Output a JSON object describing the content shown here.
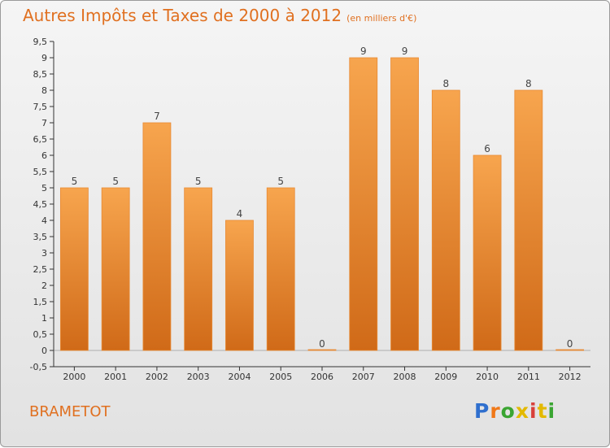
{
  "title": "Autres Impôts et Taxes de 2000 à 2012",
  "subtitle": "(en milliers d'€)",
  "commune": "BRAMETOT",
  "logo": "Proxiti",
  "colors": {
    "bar_top": "#f7a54e",
    "bar_bottom": "#d06a18",
    "title": "#e07020"
  },
  "chart_data": {
    "type": "bar",
    "categories": [
      "2000",
      "2001",
      "2002",
      "2003",
      "2004",
      "2005",
      "2006",
      "2007",
      "2008",
      "2009",
      "2010",
      "2011",
      "2012"
    ],
    "values": [
      5,
      5,
      7,
      5,
      4,
      5,
      0,
      9,
      9,
      8,
      6,
      8,
      0
    ],
    "data_labels": [
      "5",
      "5",
      "7",
      "5",
      "4",
      "5",
      "0",
      "9",
      "9",
      "8",
      "6",
      "8",
      "0"
    ],
    "title": "Autres Impôts et Taxes de 2000 à 2012",
    "ylim": [
      -0.5,
      9.5
    ],
    "yticks": [
      -0.5,
      0,
      0.5,
      1,
      1.5,
      2,
      2.5,
      3,
      3.5,
      4,
      4.5,
      5,
      5.5,
      6,
      6.5,
      7,
      7.5,
      8,
      8.5,
      9,
      9.5
    ],
    "ytick_labels": [
      "-0,5",
      "0",
      "0,5",
      "1",
      "1,5",
      "2",
      "2,5",
      "3",
      "3,5",
      "4",
      "4,5",
      "5",
      "5,5",
      "6",
      "6,5",
      "7",
      "7,5",
      "8",
      "8,5",
      "9",
      "9,5"
    ],
    "grid": false
  }
}
